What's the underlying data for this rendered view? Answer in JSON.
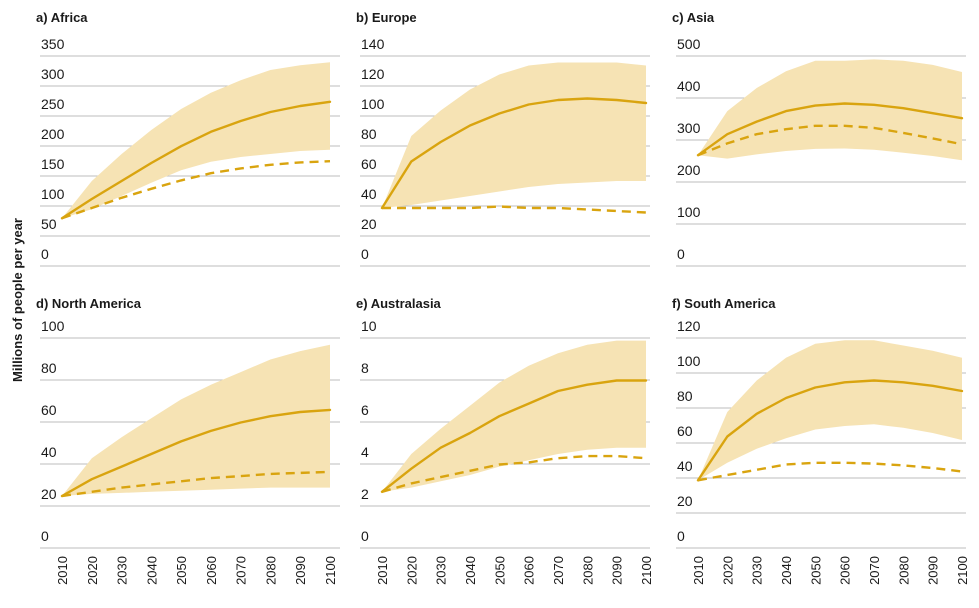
{
  "colors": {
    "band": "#f6e3b4",
    "line": "#d9a40f",
    "grid": "#bdbdbd",
    "text": "#1a1a1a"
  },
  "y_axis_label": "Millions of people per year",
  "chart_data": [
    {
      "type": "line",
      "title": "a) Africa",
      "x": [
        2010,
        2020,
        2030,
        2040,
        2050,
        2060,
        2070,
        2080,
        2090,
        2100
      ],
      "ylim": [
        0,
        350
      ],
      "yticks": [
        0,
        50,
        100,
        150,
        200,
        250,
        300,
        350
      ],
      "grid": true,
      "series": [
        {
          "style": "solid",
          "values": [
            63,
            95,
            125,
            155,
            183,
            207,
            225,
            240,
            250,
            257
          ]
        },
        {
          "style": "dashed",
          "values": [
            63,
            80,
            97,
            112,
            126,
            138,
            146,
            152,
            156,
            158
          ]
        }
      ],
      "band": {
        "lower": [
          63,
          78,
          100,
          122,
          143,
          157,
          165,
          170,
          175,
          177
        ],
        "upper": [
          63,
          125,
          170,
          210,
          245,
          272,
          293,
          310,
          318,
          323
        ]
      }
    },
    {
      "type": "line",
      "title": "b) Europe",
      "x": [
        2010,
        2020,
        2030,
        2040,
        2050,
        2060,
        2070,
        2080,
        2090,
        2100
      ],
      "ylim": [
        0,
        140
      ],
      "yticks": [
        0,
        20,
        40,
        60,
        80,
        100,
        120,
        140
      ],
      "grid": true,
      "series": [
        {
          "style": "solid",
          "values": [
            32,
            63,
            76,
            87,
            95,
            101,
            104,
            105,
            104,
            102
          ]
        },
        {
          "style": "dashed",
          "values": [
            32,
            32,
            32,
            32,
            33,
            32,
            32,
            31,
            30,
            29
          ]
        }
      ],
      "band": {
        "lower": [
          32,
          34,
          37,
          40,
          43,
          46,
          48,
          49,
          50,
          50
        ],
        "upper": [
          32,
          80,
          97,
          111,
          121,
          127,
          129,
          129,
          129,
          127
        ]
      }
    },
    {
      "type": "line",
      "title": "c) Asia",
      "x": [
        2010,
        2020,
        2030,
        2040,
        2050,
        2060,
        2070,
        2080,
        2090,
        2100
      ],
      "ylim": [
        0,
        500
      ],
      "yticks": [
        0,
        100,
        200,
        300,
        400,
        500
      ],
      "grid": true,
      "series": [
        {
          "style": "solid",
          "values": [
            240,
            290,
            320,
            345,
            358,
            363,
            360,
            352,
            340,
            328
          ]
        },
        {
          "style": "dashed",
          "values": [
            240,
            268,
            290,
            302,
            310,
            310,
            305,
            293,
            280,
            266
          ]
        }
      ],
      "band": {
        "lower": [
          240,
          232,
          242,
          250,
          255,
          256,
          253,
          246,
          238,
          228
        ],
        "upper": [
          240,
          345,
          400,
          440,
          465,
          465,
          468,
          465,
          455,
          438
        ]
      }
    },
    {
      "type": "line",
      "title": "d) North America",
      "x": [
        2010,
        2020,
        2030,
        2040,
        2050,
        2060,
        2070,
        2080,
        2090,
        2100
      ],
      "ylim": [
        0,
        100
      ],
      "yticks": [
        0,
        20,
        40,
        60,
        80,
        100
      ],
      "grid": true,
      "series": [
        {
          "style": "solid",
          "values": [
            20,
            28,
            34,
            40,
            46,
            51,
            55,
            58,
            60,
            61
          ]
        },
        {
          "style": "dashed",
          "values": [
            20,
            22,
            24,
            25.5,
            27,
            28.5,
            29.5,
            30.5,
            31,
            31.5
          ]
        }
      ],
      "band": {
        "lower": [
          20,
          21,
          21.5,
          22,
          22.5,
          23,
          23.5,
          24,
          24,
          24
        ],
        "upper": [
          20,
          38,
          48,
          57,
          66,
          73,
          79,
          85,
          89,
          92
        ]
      }
    },
    {
      "type": "line",
      "title": "e) Australasia",
      "x": [
        2010,
        2020,
        2030,
        2040,
        2050,
        2060,
        2070,
        2080,
        2090,
        2100
      ],
      "ylim": [
        0,
        10
      ],
      "yticks": [
        0,
        2,
        4,
        6,
        8,
        10
      ],
      "grid": true,
      "series": [
        {
          "style": "solid",
          "values": [
            2.2,
            3.3,
            4.3,
            5.0,
            5.8,
            6.4,
            7.0,
            7.3,
            7.5,
            7.5
          ]
        },
        {
          "style": "dashed",
          "values": [
            2.2,
            2.6,
            2.9,
            3.2,
            3.5,
            3.6,
            3.8,
            3.9,
            3.9,
            3.8
          ]
        }
      ],
      "band": {
        "lower": [
          2.2,
          2.4,
          2.7,
          3.0,
          3.4,
          3.7,
          4.0,
          4.2,
          4.3,
          4.3
        ],
        "upper": [
          2.2,
          4.0,
          5.2,
          6.3,
          7.4,
          8.2,
          8.8,
          9.2,
          9.4,
          9.4
        ]
      }
    },
    {
      "type": "line",
      "title": "f) South America",
      "x": [
        2010,
        2020,
        2030,
        2040,
        2050,
        2060,
        2070,
        2080,
        2090,
        2100
      ],
      "ylim": [
        0,
        120
      ],
      "yticks": [
        0,
        20,
        40,
        60,
        80,
        100,
        120
      ],
      "grid": true,
      "series": [
        {
          "style": "solid",
          "values": [
            33,
            58,
            71,
            80,
            86,
            89,
            90,
            89,
            87,
            84
          ]
        },
        {
          "style": "dashed",
          "values": [
            33,
            36,
            39,
            42,
            43,
            43,
            42.5,
            41.5,
            40,
            38
          ]
        }
      ],
      "band": {
        "lower": [
          33,
          43,
          51,
          57,
          62,
          64,
          65,
          63,
          60,
          56
        ],
        "upper": [
          33,
          72,
          90,
          103,
          111,
          113,
          113,
          110,
          107,
          103
        ]
      }
    }
  ]
}
